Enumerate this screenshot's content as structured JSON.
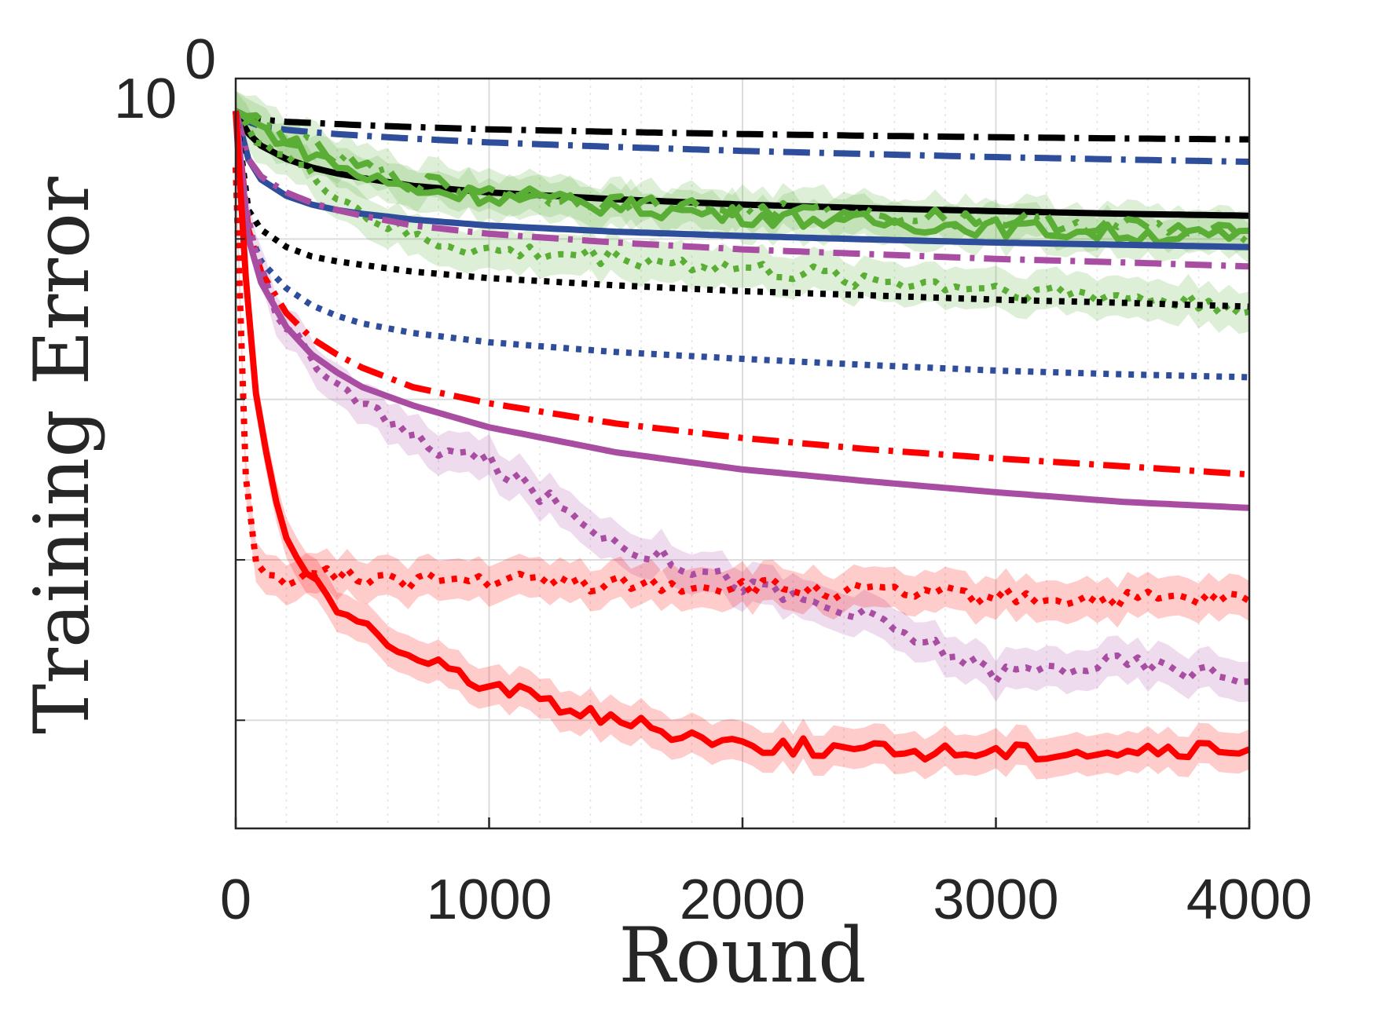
{
  "chart_data": {
    "type": "line",
    "title": "",
    "xlabel": "Round",
    "ylabel": "Training Error",
    "xlim": [
      0,
      4000
    ],
    "y_scale": "log",
    "ylim": [
      0.0135,
      1.0
    ],
    "xticks": [
      "0",
      "1000",
      "2000",
      "3000",
      "4000"
    ],
    "ytick_label": {
      "base": "10",
      "exponent": "0"
    },
    "grid": "on",
    "x": [
      0,
      50,
      100,
      200,
      300,
      400,
      500,
      700,
      1000,
      1500,
      2000,
      2500,
      3000,
      3500,
      4000
    ],
    "series": [
      {
        "name": "black dash-dot",
        "color": "#000000",
        "style": "dashdot",
        "values": [
          0.83,
          0.8,
          0.79,
          0.78,
          0.775,
          0.77,
          0.765,
          0.757,
          0.747,
          0.736,
          0.727,
          0.72,
          0.714,
          0.709,
          0.705
        ]
      },
      {
        "name": "blue dash-dot",
        "color": "#2E4D9A",
        "style": "dashdot",
        "values": [
          0.83,
          0.78,
          0.76,
          0.745,
          0.735,
          0.727,
          0.72,
          0.708,
          0.693,
          0.675,
          0.66,
          0.648,
          0.637,
          0.628,
          0.62
        ]
      },
      {
        "name": "black solid",
        "color": "#000000",
        "style": "solid",
        "values": [
          0.83,
          0.73,
          0.68,
          0.63,
          0.6,
          0.58,
          0.565,
          0.54,
          0.52,
          0.5,
          0.485,
          0.475,
          0.467,
          0.46,
          0.455
        ]
      },
      {
        "name": "green solid",
        "color": "#5BAE35",
        "style": "solid",
        "band": true,
        "values": [
          0.83,
          0.79,
          0.75,
          0.7,
          0.65,
          0.61,
          0.57,
          0.53,
          0.51,
          0.48,
          0.455,
          0.44,
          0.425,
          0.41,
          0.4
        ]
      },
      {
        "name": "green dash-dot",
        "color": "#5BAE35",
        "style": "dashdot",
        "band": true,
        "values": [
          0.83,
          0.8,
          0.77,
          0.72,
          0.67,
          0.63,
          0.6,
          0.55,
          0.53,
          0.49,
          0.47,
          0.46,
          0.445,
          0.43,
          0.405
        ]
      },
      {
        "name": "green dotted",
        "color": "#5BAE35",
        "style": "dotted",
        "band": true,
        "values": [
          0.83,
          0.76,
          0.7,
          0.63,
          0.57,
          0.52,
          0.46,
          0.4,
          0.37,
          0.36,
          0.335,
          0.315,
          0.3,
          0.285,
          0.27
        ]
      },
      {
        "name": "blue solid",
        "color": "#2E4D9A",
        "style": "solid",
        "values": [
          0.83,
          0.63,
          0.56,
          0.51,
          0.485,
          0.47,
          0.46,
          0.445,
          0.43,
          0.415,
          0.405,
          0.397,
          0.39,
          0.385,
          0.38
        ]
      },
      {
        "name": "purple dash-dot",
        "color": "#A94DA3",
        "style": "dashdot",
        "values": [
          0.83,
          0.63,
          0.57,
          0.52,
          0.49,
          0.47,
          0.455,
          0.43,
          0.41,
          0.39,
          0.375,
          0.365,
          0.355,
          0.348,
          0.34
        ]
      },
      {
        "name": "black dotted",
        "color": "#000000",
        "style": "dotted",
        "values": [
          0.83,
          0.47,
          0.42,
          0.38,
          0.36,
          0.35,
          0.343,
          0.33,
          0.318,
          0.305,
          0.295,
          0.288,
          0.281,
          0.276,
          0.27
        ]
      },
      {
        "name": "blue dotted",
        "color": "#2E4D9A",
        "style": "dotted",
        "values": [
          0.83,
          0.42,
          0.35,
          0.3,
          0.272,
          0.256,
          0.245,
          0.232,
          0.22,
          0.208,
          0.2,
          0.193,
          0.187,
          0.183,
          0.18
        ]
      },
      {
        "name": "red dash-dot",
        "color": "#FF0000",
        "style": "dashdot",
        "values": [
          0.83,
          0.42,
          0.33,
          0.26,
          0.225,
          0.205,
          0.19,
          0.17,
          0.155,
          0.138,
          0.127,
          0.119,
          0.113,
          0.108,
          0.103
        ]
      },
      {
        "name": "purple solid",
        "color": "#A94DA3",
        "style": "solid",
        "values": [
          0.83,
          0.4,
          0.31,
          0.24,
          0.205,
          0.185,
          0.17,
          0.153,
          0.135,
          0.117,
          0.106,
          0.099,
          0.093,
          0.088,
          0.085
        ]
      },
      {
        "name": "purple dotted",
        "color": "#A94DA3",
        "style": "dotted",
        "band": true,
        "values": [
          0.83,
          0.42,
          0.32,
          0.24,
          0.2,
          0.175,
          0.155,
          0.125,
          0.11,
          0.07,
          0.055,
          0.045,
          0.033,
          0.035,
          0.032
        ]
      },
      {
        "name": "red dotted",
        "color": "#FF0000",
        "style": "dotted",
        "band": true,
        "values": [
          0.6,
          0.065,
          0.056,
          0.057,
          0.058,
          0.057,
          0.057,
          0.056,
          0.056,
          0.055,
          0.054,
          0.052,
          0.051,
          0.05,
          0.05
        ]
      },
      {
        "name": "red solid",
        "color": "#FF0000",
        "style": "solid",
        "band": true,
        "values": [
          0.83,
          0.25,
          0.13,
          0.07,
          0.055,
          0.048,
          0.044,
          0.036,
          0.031,
          0.025,
          0.022,
          0.021,
          0.021,
          0.021,
          0.021
        ]
      }
    ]
  }
}
